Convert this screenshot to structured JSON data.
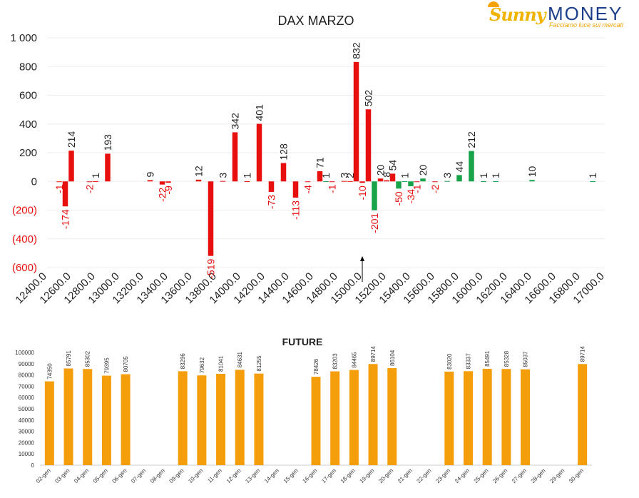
{
  "logo": {
    "brand_part1": "Sunny",
    "brand_part2": "MONEY",
    "tagline": "Facciamo luce sui mercati"
  },
  "chart_data": [
    {
      "type": "bar",
      "title": "DAX MARZO",
      "y_ticks": [
        "1 000",
        "800",
        "600",
        "400",
        "200",
        "0",
        "(200)",
        "(400)",
        "(600)"
      ],
      "y_tick_values": [
        1000,
        800,
        600,
        400,
        200,
        0,
        -200,
        -400,
        -600
      ],
      "ylim": [
        -600,
        1000
      ],
      "x_ticks": [
        "12400.0",
        "12600.0",
        "12800.0",
        "13000.0",
        "13200.0",
        "13400.0",
        "13600.0",
        "13800.0",
        "14000.0",
        "14200.0",
        "14400.0",
        "14600.0",
        "14800.0",
        "15000.0",
        "15200.0",
        "15400.0",
        "15600.0",
        "15800.0",
        "16000.0",
        "16200.0",
        "16400.0",
        "16600.0",
        "16800.0",
        "17000.0"
      ],
      "x_tick_values": [
        12400,
        12600,
        12800,
        13000,
        13200,
        13400,
        13600,
        13800,
        14000,
        14200,
        14400,
        14600,
        14800,
        15000,
        15200,
        15400,
        15600,
        15800,
        16000,
        16200,
        16400,
        16600,
        16800,
        17000
      ],
      "xlim": [
        12400,
        17000
      ],
      "grid": true,
      "colors": {
        "positive": "#e8100f",
        "negative_label": "#e8100f",
        "green": "#16a34a",
        "axis_neg_text": "#e8100f",
        "axis_pos_text": "#222222"
      },
      "marker": {
        "x": 15000,
        "symbol": "arrow-up"
      },
      "series": [
        {
          "values": [
            {
              "x": 12500,
              "y": -1,
              "label": "-1",
              "color": "red"
            },
            {
              "x": 12550,
              "y": -174,
              "label": "-174",
              "color": "red"
            },
            {
              "x": 12600,
              "y": 214,
              "label": "214",
              "color": "red"
            },
            {
              "x": 12750,
              "y": -2,
              "label": "-2",
              "color": "red"
            },
            {
              "x": 12800,
              "y": 1,
              "label": "1",
              "color": "red"
            },
            {
              "x": 12900,
              "y": 193,
              "label": "193",
              "color": "red"
            },
            {
              "x": 13250,
              "y": 9,
              "label": "9",
              "color": "red"
            },
            {
              "x": 13350,
              "y": -22,
              "label": "-22",
              "color": "red"
            },
            {
              "x": 13400,
              "y": -9,
              "label": "-9",
              "color": "red"
            },
            {
              "x": 13650,
              "y": 12,
              "label": "12",
              "color": "red"
            },
            {
              "x": 13750,
              "y": -519,
              "label": "-519",
              "color": "red"
            },
            {
              "x": 13850,
              "y": 3,
              "label": "3",
              "color": "red"
            },
            {
              "x": 13950,
              "y": 342,
              "label": "342",
              "color": "red"
            },
            {
              "x": 14050,
              "y": 1,
              "label": "1",
              "color": "red"
            },
            {
              "x": 14150,
              "y": 401,
              "label": "401",
              "color": "red"
            },
            {
              "x": 14250,
              "y": -73,
              "label": "-73",
              "color": "red"
            },
            {
              "x": 14350,
              "y": 128,
              "label": "128",
              "color": "red"
            },
            {
              "x": 14450,
              "y": -113,
              "label": "-113",
              "color": "red"
            },
            {
              "x": 14550,
              "y": -4,
              "label": "-4",
              "color": "red"
            },
            {
              "x": 14650,
              "y": 71,
              "label": "71",
              "color": "red"
            },
            {
              "x": 14700,
              "y": 1,
              "label": "1",
              "color": "green"
            },
            {
              "x": 14750,
              "y": -1,
              "label": "-1",
              "color": "red"
            },
            {
              "x": 14850,
              "y": 3,
              "label": "3",
              "color": "red"
            },
            {
              "x": 14900,
              "y": 2,
              "label": "2",
              "color": "red"
            },
            {
              "x": 14950,
              "y": 832,
              "label": "832",
              "color": "red"
            },
            {
              "x": 15000,
              "y": -10,
              "label": "-10",
              "color": "red"
            },
            {
              "x": 15050,
              "y": 502,
              "label": "502",
              "color": "red"
            },
            {
              "x": 15100,
              "y": -201,
              "label": "-201",
              "color": "green"
            },
            {
              "x": 15150,
              "y": 20,
              "label": "20",
              "color": "red"
            },
            {
              "x": 15200,
              "y": 8,
              "label": "8",
              "color": "red"
            },
            {
              "x": 15250,
              "y": 54,
              "label": "54",
              "color": "red"
            },
            {
              "x": 15300,
              "y": -50,
              "label": "-50",
              "color": "green"
            },
            {
              "x": 15350,
              "y": 1,
              "label": "1",
              "color": "green"
            },
            {
              "x": 15400,
              "y": -34,
              "label": "-34",
              "color": "green"
            },
            {
              "x": 15450,
              "y": -1,
              "label": "-1",
              "color": "red"
            },
            {
              "x": 15500,
              "y": 20,
              "label": "20",
              "color": "green"
            },
            {
              "x": 15600,
              "y": -2,
              "label": "-2",
              "color": "red"
            },
            {
              "x": 15700,
              "y": 3,
              "label": "3",
              "color": "green"
            },
            {
              "x": 15800,
              "y": 44,
              "label": "44",
              "color": "green"
            },
            {
              "x": 15900,
              "y": 212,
              "label": "212",
              "color": "green"
            },
            {
              "x": 16000,
              "y": 1,
              "label": "1",
              "color": "green"
            },
            {
              "x": 16100,
              "y": 1,
              "label": "1",
              "color": "green"
            },
            {
              "x": 16400,
              "y": 10,
              "label": "10",
              "color": "green"
            },
            {
              "x": 16900,
              "y": 1,
              "label": "1",
              "color": "green"
            }
          ]
        }
      ]
    },
    {
      "type": "bar",
      "title": "FUTURE",
      "ylim": [
        0,
        100000
      ],
      "y_ticks": [
        "100000",
        "90000",
        "80000",
        "70000",
        "60000",
        "50000",
        "40000",
        "30000",
        "20000",
        "10000",
        "0"
      ],
      "y_tick_values": [
        100000,
        90000,
        80000,
        70000,
        60000,
        50000,
        40000,
        30000,
        20000,
        10000,
        0
      ],
      "bar_color": "#f59e0b",
      "categories": [
        "02-gen",
        "03-gen",
        "04-gen",
        "05-gen",
        "06-gen",
        "07-gen",
        "08-gen",
        "09-gen",
        "10-gen",
        "11-gen",
        "12-gen",
        "13-gen",
        "14-gen",
        "15-gen",
        "16-gen",
        "17-gen",
        "18-gen",
        "19-gen",
        "20-gen",
        "21-gen",
        "22-gen",
        "23-gen",
        "24-gen",
        "25-gen",
        "26-gen",
        "27-gen",
        "28-gen",
        "29-gen",
        "30-gen"
      ],
      "values": [
        74350,
        85791,
        85302,
        79395,
        80705,
        null,
        null,
        83296,
        79632,
        81041,
        84631,
        81255,
        null,
        null,
        78426,
        83203,
        84465,
        89714,
        86104,
        null,
        null,
        83020,
        83337,
        85491,
        85328,
        85037,
        null,
        null,
        89714
      ]
    }
  ]
}
